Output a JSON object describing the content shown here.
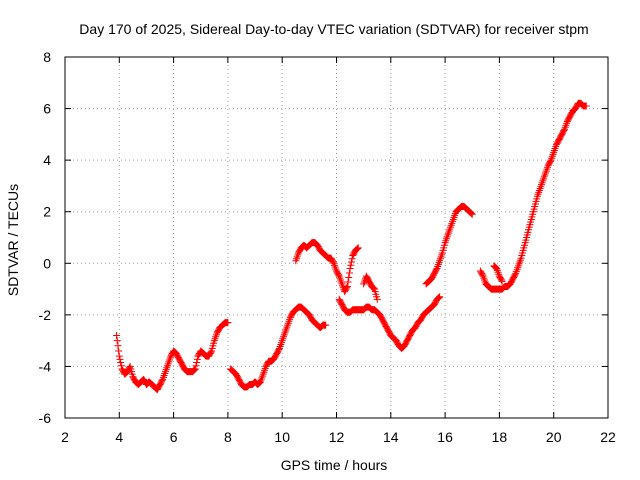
{
  "chart_data": {
    "type": "scatter",
    "title": "Day 170 of 2025, Sidereal Day-to-day VTEC variation (SDTVAR) for receiver stpm",
    "xlabel": "GPS time / hours",
    "ylabel": "SDTVAR / TECUs",
    "xlim": [
      2,
      22
    ],
    "ylim": [
      -6,
      8
    ],
    "xticks": [
      2,
      4,
      6,
      8,
      10,
      12,
      14,
      16,
      18,
      20,
      22
    ],
    "yticks": [
      -6,
      -4,
      -2,
      0,
      2,
      4,
      6,
      8
    ],
    "xtick_labels": [
      "2",
      "4",
      "6",
      "8",
      "10",
      "12",
      "14",
      "16",
      "18",
      "20",
      "22"
    ],
    "ytick_labels": [
      "-6",
      "-4",
      "-2",
      "0",
      "2",
      "4",
      "6",
      "8"
    ],
    "grid": true,
    "marker": "+",
    "color": "#ff0000",
    "series": [
      {
        "x": [
          3.9,
          4.0,
          4.1,
          4.2,
          4.3,
          4.4,
          4.5,
          4.6,
          4.7,
          4.8,
          4.9,
          5.0,
          5.1,
          5.2,
          5.3,
          5.4,
          5.5,
          5.6,
          5.7,
          5.8,
          5.9,
          6.0,
          6.1,
          6.2,
          6.3,
          6.4,
          6.5,
          6.6,
          6.7,
          6.8,
          6.9,
          7.0,
          7.1,
          7.2,
          7.3,
          7.4,
          7.5,
          7.6,
          7.7,
          7.8,
          7.9,
          8.0
        ],
        "y": [
          -2.8,
          -3.6,
          -4.1,
          -4.3,
          -4.2,
          -4.0,
          -4.4,
          -4.6,
          -4.7,
          -4.6,
          -4.5,
          -4.7,
          -4.6,
          -4.7,
          -4.8,
          -4.9,
          -4.7,
          -4.5,
          -4.2,
          -3.9,
          -3.6,
          -3.4,
          -3.5,
          -3.7,
          -3.9,
          -4.1,
          -4.2,
          -4.2,
          -4.2,
          -4.1,
          -3.6,
          -3.4,
          -3.5,
          -3.6,
          -3.6,
          -3.4,
          -3.0,
          -2.7,
          -2.5,
          -2.4,
          -2.3,
          -2.3
        ]
      },
      {
        "x": [
          8.1,
          8.2,
          8.3,
          8.4,
          8.5,
          8.6,
          8.7,
          8.8,
          8.9,
          9.0,
          9.1,
          9.2,
          9.3,
          9.4,
          9.5,
          9.6,
          9.7,
          9.8,
          9.9,
          10.0,
          10.1,
          10.2,
          10.3,
          10.4,
          10.5,
          10.6,
          10.7,
          10.8,
          10.9,
          11.0,
          11.1,
          11.2,
          11.3,
          11.4,
          11.5,
          11.6
        ],
        "y": [
          -4.1,
          -4.2,
          -4.3,
          -4.5,
          -4.7,
          -4.8,
          -4.8,
          -4.7,
          -4.7,
          -4.6,
          -4.7,
          -4.6,
          -4.3,
          -4.0,
          -3.8,
          -3.8,
          -3.7,
          -3.5,
          -3.3,
          -3.0,
          -2.7,
          -2.4,
          -2.1,
          -1.9,
          -1.8,
          -1.7,
          -1.7,
          -1.8,
          -1.9,
          -2.0,
          -2.2,
          -2.3,
          -2.4,
          -2.5,
          -2.4,
          -2.4
        ]
      },
      {
        "x": [
          10.5,
          10.6,
          10.7,
          10.8,
          10.9,
          11.0,
          11.1,
          11.2,
          11.3,
          11.4,
          11.5,
          11.6,
          11.7,
          11.8,
          11.9,
          12.0,
          12.1,
          12.2,
          12.3,
          12.4,
          12.5,
          12.6,
          12.7,
          12.8
        ],
        "y": [
          0.1,
          0.4,
          0.6,
          0.7,
          0.6,
          0.7,
          0.8,
          0.8,
          0.7,
          0.5,
          0.4,
          0.3,
          0.2,
          0.2,
          0.0,
          -0.3,
          -0.5,
          -0.8,
          -1.1,
          -0.9,
          -0.2,
          0.3,
          0.5,
          0.6
        ]
      },
      {
        "x": [
          12.1,
          12.2,
          12.3,
          12.4,
          12.5,
          12.6,
          12.7,
          12.8,
          12.9,
          13.0,
          13.1,
          13.2,
          13.3,
          13.4,
          13.5,
          13.6,
          13.7,
          13.8,
          13.9,
          14.0,
          14.1,
          14.2,
          14.3,
          14.4,
          14.5,
          14.6,
          14.7,
          14.8,
          14.9,
          15.0,
          15.1,
          15.2,
          15.3,
          15.4,
          15.5,
          15.6,
          15.7,
          15.8
        ],
        "y": [
          -1.4,
          -1.6,
          -1.8,
          -1.9,
          -1.9,
          -1.8,
          -1.8,
          -1.8,
          -1.8,
          -1.8,
          -1.7,
          -1.7,
          -1.8,
          -1.8,
          -1.9,
          -2.0,
          -2.2,
          -2.4,
          -2.6,
          -2.8,
          -2.9,
          -3.0,
          -3.2,
          -3.3,
          -3.2,
          -3.0,
          -2.8,
          -2.6,
          -2.5,
          -2.3,
          -2.2,
          -2.0,
          -1.9,
          -1.8,
          -1.7,
          -1.6,
          -1.4,
          -1.3
        ]
      },
      {
        "x": [
          13.0,
          13.1,
          13.2,
          13.3,
          13.4,
          13.5
        ],
        "y": [
          -0.8,
          -0.5,
          -0.7,
          -0.9,
          -1.0,
          -1.4
        ]
      },
      {
        "x": [
          15.3,
          15.4,
          15.5,
          15.6,
          15.7,
          15.8,
          15.9,
          16.0,
          16.1,
          16.2,
          16.3,
          16.4,
          16.5,
          16.6,
          16.7,
          16.8,
          16.9,
          17.0
        ],
        "y": [
          -0.8,
          -0.7,
          -0.6,
          -0.4,
          -0.2,
          0.1,
          0.4,
          0.8,
          1.1,
          1.4,
          1.7,
          2.0,
          2.1,
          2.2,
          2.2,
          2.1,
          2.0,
          1.9
        ]
      },
      {
        "x": [
          17.3,
          17.4,
          17.5,
          17.6,
          17.7,
          17.8,
          17.9,
          18.0,
          18.1,
          18.2,
          18.3,
          18.4,
          18.5,
          18.6,
          18.7,
          18.8,
          18.9,
          19.0,
          19.1,
          19.2,
          19.3,
          19.4,
          19.5,
          19.6,
          19.7,
          19.8,
          19.9,
          20.0,
          20.1,
          20.2,
          20.3,
          20.4,
          20.5,
          20.6,
          20.7,
          20.8,
          20.9,
          21.0,
          21.1,
          21.2
        ],
        "y": [
          -0.3,
          -0.5,
          -0.8,
          -0.9,
          -1.0,
          -1.0,
          -1.0,
          -1.0,
          -1.0,
          -0.9,
          -0.9,
          -0.8,
          -0.6,
          -0.4,
          -0.1,
          0.2,
          0.6,
          1.0,
          1.4,
          1.8,
          2.2,
          2.6,
          2.9,
          3.2,
          3.5,
          3.8,
          4.0,
          4.3,
          4.6,
          4.8,
          5.0,
          5.2,
          5.5,
          5.7,
          5.9,
          6.0,
          6.2,
          6.2,
          6.1,
          6.1
        ]
      },
      {
        "x": [
          17.8,
          17.9,
          18.0,
          18.1
        ],
        "y": [
          -0.1,
          -0.2,
          -0.5,
          -0.7
        ]
      }
    ]
  }
}
